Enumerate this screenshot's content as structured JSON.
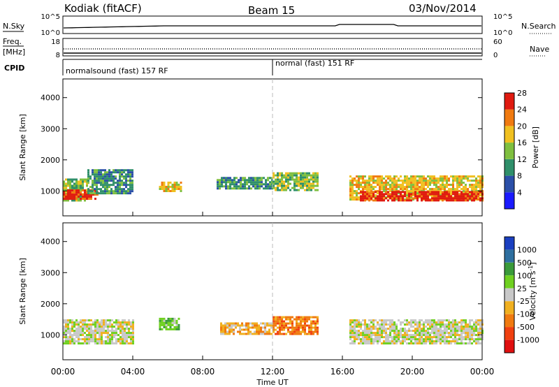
{
  "header": {
    "station": "Kodiak (fitACF)",
    "beam": "Beam 15",
    "date": "03/Nov/2014"
  },
  "panels": {
    "nsky_label": "N.Sky",
    "nsearch_label": "N.Search",
    "freq_label_line1": "Freq.",
    "freq_label_line2": "[MHz]",
    "nave_label": "Nave",
    "cpid_label": "CPID",
    "nsky_ticks": [
      "10^5",
      "10^0"
    ],
    "nsearch_ticks": [
      "10^5",
      "10^0"
    ],
    "freq_ticks": [
      "18",
      "8"
    ],
    "nave_ticks": [
      "60",
      "0"
    ],
    "cpid_modes": [
      "normalsound (fast) 157 RF",
      "normal (fast) 151 RF"
    ]
  },
  "chart_data": [
    {
      "type": "heatmap",
      "name": "power",
      "ylabel": "Slant Range [km]",
      "ylim": [
        200,
        4600
      ],
      "yticks": [
        1000,
        2000,
        3000,
        4000
      ],
      "xlabel": "Time UT",
      "xlim": [
        0,
        24
      ],
      "xtick_labels": [
        "00:00",
        "04:00",
        "08:00",
        "12:00",
        "16:00",
        "20:00",
        "00:00"
      ],
      "colorbar_label": "Power [dB]",
      "colorbar_ticks": [
        "4",
        "8",
        "12",
        "16",
        "20",
        "24",
        "28"
      ],
      "colorbar_colors": [
        "#1a1aff",
        "#2b4fa8",
        "#2f8f6a",
        "#7fbf3f",
        "#f0c020",
        "#f07a10",
        "#e01a10"
      ],
      "regions": [
        {
          "t0": 0.0,
          "t1": 1.4,
          "r0": 700,
          "r1": 1400,
          "level": 3
        },
        {
          "t0": 0.0,
          "t1": 2.0,
          "r0": 750,
          "r1": 1050,
          "level": 6
        },
        {
          "t0": 1.4,
          "t1": 4.0,
          "r0": 900,
          "r1": 1700,
          "level": 2
        },
        {
          "t0": 5.5,
          "t1": 6.8,
          "r0": 1000,
          "r1": 1300,
          "level": 4
        },
        {
          "t0": 8.8,
          "t1": 12.0,
          "r0": 1100,
          "r1": 1450,
          "level": 2
        },
        {
          "t0": 12.0,
          "t1": 14.6,
          "r0": 1000,
          "r1": 1600,
          "level": 3
        },
        {
          "t0": 16.4,
          "t1": 24.0,
          "r0": 700,
          "r1": 1500,
          "level": 4
        },
        {
          "t0": 17.0,
          "t1": 24.0,
          "r0": 700,
          "r1": 1000,
          "level": 6
        }
      ]
    },
    {
      "type": "heatmap",
      "name": "velocity",
      "ylabel": "Slant Range [km]",
      "ylim": [
        200,
        4600
      ],
      "yticks": [
        1000,
        2000,
        3000,
        4000
      ],
      "xlabel": "Time UT",
      "xlim": [
        0,
        24
      ],
      "xtick_labels": [
        "00:00",
        "04:00",
        "08:00",
        "12:00",
        "16:00",
        "20:00",
        "00:00"
      ],
      "colorbar_label": "Velocity [m s^-1]",
      "colorbar_ticks": [
        "1000",
        "500",
        "100",
        "25",
        "-25",
        "-100",
        "-500",
        "-1000"
      ],
      "colorbar_colors": [
        "#1a3fc0",
        "#2e6fa0",
        "#3a9a3a",
        "#6fd020",
        "#c8c8c8",
        "#f0b020",
        "#f07a10",
        "#f04010",
        "#e01010"
      ],
      "regions": [
        {
          "t0": 0.0,
          "t1": 4.0,
          "r0": 700,
          "r1": 1500,
          "level": 4
        },
        {
          "t0": 5.5,
          "t1": 6.6,
          "r0": 1200,
          "r1": 1550,
          "level": 3
        },
        {
          "t0": 9.0,
          "t1": 12.0,
          "r0": 1050,
          "r1": 1400,
          "level": 5
        },
        {
          "t0": 12.0,
          "t1": 14.6,
          "r0": 1000,
          "r1": 1600,
          "level": 6
        },
        {
          "t0": 16.4,
          "t1": 24.0,
          "r0": 700,
          "r1": 1500,
          "level": 4
        }
      ]
    }
  ]
}
